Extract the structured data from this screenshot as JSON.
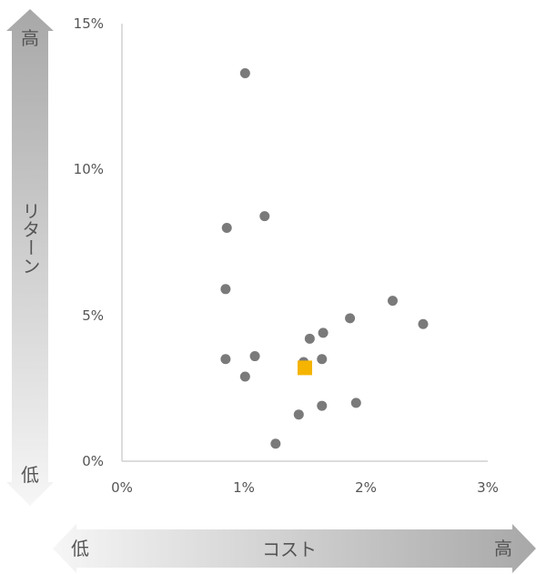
{
  "chart_data": {
    "type": "scatter",
    "title": "",
    "xlabel": "コスト",
    "ylabel": "リターン",
    "x_axis_arrow": {
      "low_label": "低",
      "high_label": "高"
    },
    "y_axis_arrow": {
      "low_label": "低",
      "high_label": "高"
    },
    "xlim": [
      0,
      3
    ],
    "ylim": [
      0,
      15
    ],
    "x_ticks": [
      "0%",
      "1%",
      "2%",
      "3%"
    ],
    "y_ticks": [
      "0%",
      "5%",
      "10%",
      "15%"
    ],
    "grid": false,
    "legend": "none",
    "colors": {
      "points": "#7a7a7a",
      "highlight": "#f5b400",
      "axis": "#d0d0d0"
    },
    "series": [
      {
        "marker": "circle",
        "points": [
          [
            1.01,
            13.3
          ],
          [
            0.86,
            8.0
          ],
          [
            1.17,
            8.4
          ],
          [
            0.85,
            5.9
          ],
          [
            0.85,
            3.5
          ],
          [
            1.09,
            3.6
          ],
          [
            1.01,
            2.9
          ],
          [
            1.49,
            3.4
          ],
          [
            1.54,
            4.2
          ],
          [
            1.65,
            4.4
          ],
          [
            1.64,
            3.5
          ],
          [
            1.87,
            4.9
          ],
          [
            2.22,
            5.5
          ],
          [
            2.47,
            4.7
          ],
          [
            1.64,
            1.9
          ],
          [
            1.92,
            2.0
          ],
          [
            1.45,
            1.6
          ],
          [
            1.26,
            0.6
          ]
        ]
      },
      {
        "marker": "square",
        "points": [
          [
            1.5,
            3.2
          ]
        ]
      }
    ]
  }
}
